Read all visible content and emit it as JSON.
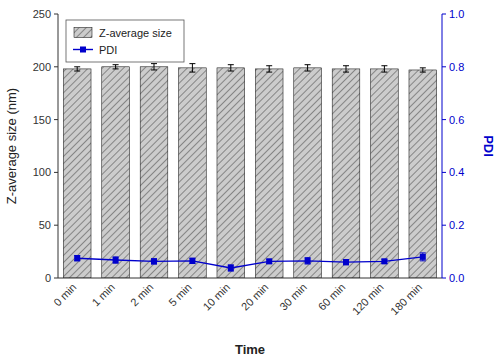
{
  "chart_data": {
    "type": "bar",
    "categories": [
      "0 min",
      "1 min",
      "2 min",
      "5 min",
      "10 min",
      "20 min",
      "30 min",
      "60 min",
      "120 min",
      "180 min"
    ],
    "xlabel": "Time",
    "ylabel": "Z-average size (nm)",
    "y2label": "PDI",
    "series": [
      {
        "name": "Z-average size",
        "type": "bar",
        "color": "#cccccc",
        "values": [
          198,
          200,
          200,
          199,
          199,
          198,
          199,
          198,
          198,
          197
        ],
        "errors": [
          2,
          2,
          3,
          4,
          3,
          3,
          3,
          3,
          3,
          2
        ]
      },
      {
        "name": "PDI",
        "type": "line",
        "axis": "y2",
        "color": "#0000cc",
        "marker": "square",
        "values": [
          0.075,
          0.068,
          0.063,
          0.065,
          0.038,
          0.063,
          0.065,
          0.06,
          0.063,
          0.08
        ],
        "errors": [
          0.01,
          0.012,
          0.01,
          0.01,
          0.012,
          0.008,
          0.012,
          0.01,
          0.008,
          0.015
        ]
      }
    ],
    "ylim": [
      0,
      250
    ],
    "yticks": [
      0,
      50,
      100,
      150,
      200,
      250
    ],
    "y2lim": [
      0.0,
      1.0
    ],
    "y2ticks": [
      {
        "value": 0.0,
        "label": "0.0"
      },
      0.2,
      0.4,
      0.6,
      0.8,
      {
        "value": 1.0,
        "label": "1.0"
      }
    ],
    "legend": "upper-left",
    "grid": false
  }
}
